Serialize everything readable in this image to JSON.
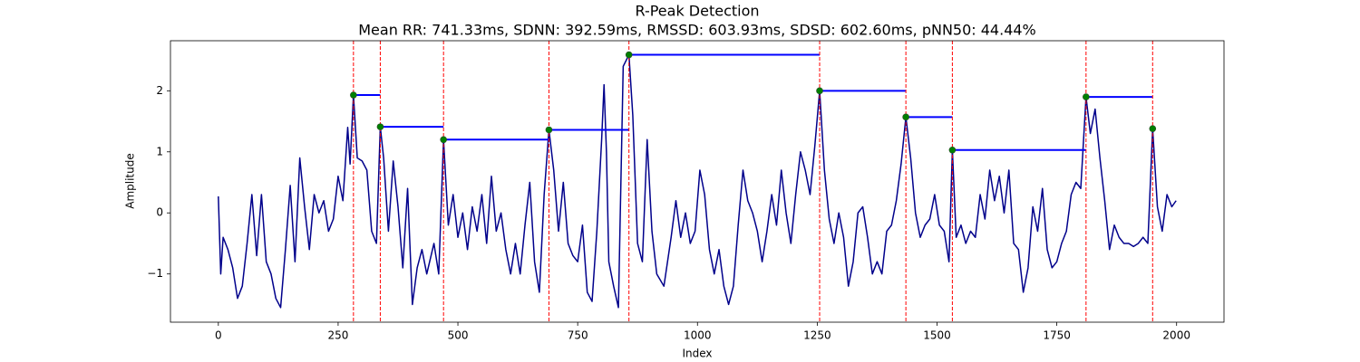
{
  "chart_data": {
    "type": "line",
    "title": "R-Peak Detection",
    "subtitle": "Mean RR: 741.33ms, SDNN: 392.59ms, RMSSD: 603.93ms, SDSD: 602.60ms, pNN50: 44.44%",
    "xlabel": "Index",
    "ylabel": "Amplitude",
    "xlim": [
      -99.95,
      2098.95
    ],
    "ylim": [
      -1.79,
      2.82
    ],
    "xticks": [
      0,
      250,
      500,
      750,
      1000,
      1250,
      1500,
      1750,
      2000
    ],
    "yticks": [
      {
        "value": -1,
        "label": "−1"
      },
      0,
      1,
      2
    ],
    "grid": false,
    "color": "#00008b",
    "x": [
      0,
      5,
      10,
      20,
      30,
      40,
      50,
      60,
      70,
      80,
      90,
      100,
      110,
      120,
      130,
      140,
      150,
      160,
      170,
      180,
      190,
      200,
      210,
      220,
      230,
      240,
      250,
      260,
      270,
      275,
      282,
      290,
      300,
      310,
      320,
      330,
      338,
      345,
      355,
      365,
      375,
      385,
      395,
      405,
      415,
      425,
      435,
      450,
      460,
      470,
      480,
      490,
      500,
      510,
      520,
      530,
      540,
      550,
      560,
      570,
      580,
      590,
      600,
      610,
      620,
      630,
      640,
      650,
      660,
      670,
      680,
      690,
      700,
      710,
      720,
      730,
      740,
      750,
      760,
      770,
      780,
      790,
      800,
      805,
      810,
      815,
      825,
      835,
      845,
      857,
      865,
      875,
      885,
      895,
      905,
      915,
      930,
      945,
      955,
      965,
      975,
      985,
      995,
      1005,
      1015,
      1025,
      1035,
      1045,
      1055,
      1065,
      1075,
      1085,
      1095,
      1105,
      1115,
      1125,
      1135,
      1145,
      1155,
      1165,
      1175,
      1185,
      1195,
      1205,
      1215,
      1225,
      1235,
      1245,
      1255,
      1265,
      1275,
      1285,
      1295,
      1305,
      1315,
      1325,
      1335,
      1345,
      1355,
      1365,
      1375,
      1385,
      1395,
      1405,
      1415,
      1425,
      1435,
      1445,
      1455,
      1465,
      1475,
      1485,
      1495,
      1505,
      1515,
      1525,
      1532,
      1540,
      1550,
      1560,
      1570,
      1580,
      1590,
      1600,
      1610,
      1620,
      1630,
      1640,
      1650,
      1660,
      1670,
      1680,
      1690,
      1700,
      1710,
      1720,
      1730,
      1740,
      1750,
      1760,
      1770,
      1780,
      1790,
      1800,
      1811,
      1820,
      1830,
      1840,
      1850,
      1860,
      1870,
      1880,
      1890,
      1900,
      1910,
      1920,
      1930,
      1940,
      1950,
      1960,
      1970,
      1980,
      1990,
      1999
    ],
    "values": [
      0.27,
      -1.0,
      -0.4,
      -0.6,
      -0.9,
      -1.4,
      -1.2,
      -0.5,
      0.3,
      -0.7,
      0.3,
      -0.8,
      -1.0,
      -1.4,
      -1.55,
      -0.6,
      0.45,
      -0.8,
      0.9,
      0.1,
      -0.6,
      0.3,
      0.0,
      0.2,
      -0.3,
      -0.1,
      0.6,
      0.2,
      1.4,
      0.8,
      1.93,
      0.9,
      0.85,
      0.7,
      -0.3,
      -0.5,
      1.41,
      0.9,
      -0.3,
      0.85,
      0.1,
      -0.9,
      0.4,
      -1.5,
      -0.9,
      -0.6,
      -1.0,
      -0.5,
      -1.0,
      1.2,
      -0.2,
      0.3,
      -0.4,
      0.0,
      -0.6,
      0.1,
      -0.3,
      0.3,
      -0.5,
      0.6,
      -0.3,
      0.0,
      -0.6,
      -1.0,
      -0.5,
      -1.0,
      -0.2,
      0.5,
      -0.8,
      -1.3,
      0.3,
      1.36,
      0.7,
      -0.3,
      0.5,
      -0.5,
      -0.7,
      -0.8,
      -0.2,
      -1.3,
      -1.45,
      -0.3,
      1.2,
      2.1,
      1.0,
      -0.8,
      -1.2,
      -1.55,
      2.4,
      2.59,
      1.6,
      -0.5,
      -0.8,
      1.2,
      -0.3,
      -1.0,
      -1.2,
      -0.4,
      0.2,
      -0.4,
      0.0,
      -0.5,
      -0.3,
      0.7,
      0.3,
      -0.6,
      -1.0,
      -0.6,
      -1.2,
      -1.5,
      -1.2,
      -0.2,
      0.7,
      0.2,
      0.0,
      -0.3,
      -0.8,
      -0.3,
      0.3,
      -0.2,
      0.7,
      0.0,
      -0.5,
      0.3,
      1.0,
      0.7,
      0.3,
      1.1,
      2.0,
      0.7,
      -0.1,
      -0.5,
      0.0,
      -0.4,
      -1.2,
      -0.8,
      0.0,
      0.1,
      -0.4,
      -1.0,
      -0.8,
      -1.0,
      -0.3,
      -0.2,
      0.2,
      0.8,
      1.57,
      0.9,
      0.0,
      -0.4,
      -0.2,
      -0.1,
      0.3,
      -0.2,
      -0.3,
      -0.8,
      1.03,
      -0.4,
      -0.2,
      -0.5,
      -0.3,
      -0.4,
      0.3,
      -0.1,
      0.7,
      0.2,
      0.6,
      0.0,
      0.7,
      -0.5,
      -0.6,
      -1.3,
      -0.9,
      0.1,
      -0.3,
      0.4,
      -0.6,
      -0.9,
      -0.8,
      -0.5,
      -0.3,
      0.3,
      0.5,
      0.4,
      1.9,
      1.3,
      1.7,
      0.9,
      0.2,
      -0.6,
      -0.2,
      -0.4,
      -0.5,
      -0.5,
      -0.55,
      -0.5,
      -0.4,
      -0.5,
      1.38,
      0.1,
      -0.3,
      0.3,
      0.1,
      0.2
    ],
    "peaks": {
      "x": [
        282,
        338,
        470,
        690,
        857,
        1255,
        1435,
        1532,
        1811,
        1950
      ],
      "values": [
        1.93,
        1.41,
        1.2,
        1.36,
        2.59,
        2.0,
        1.57,
        1.03,
        1.9,
        1.38
      ],
      "color": "green",
      "vline_color": "red",
      "hline_color": "blue"
    }
  }
}
